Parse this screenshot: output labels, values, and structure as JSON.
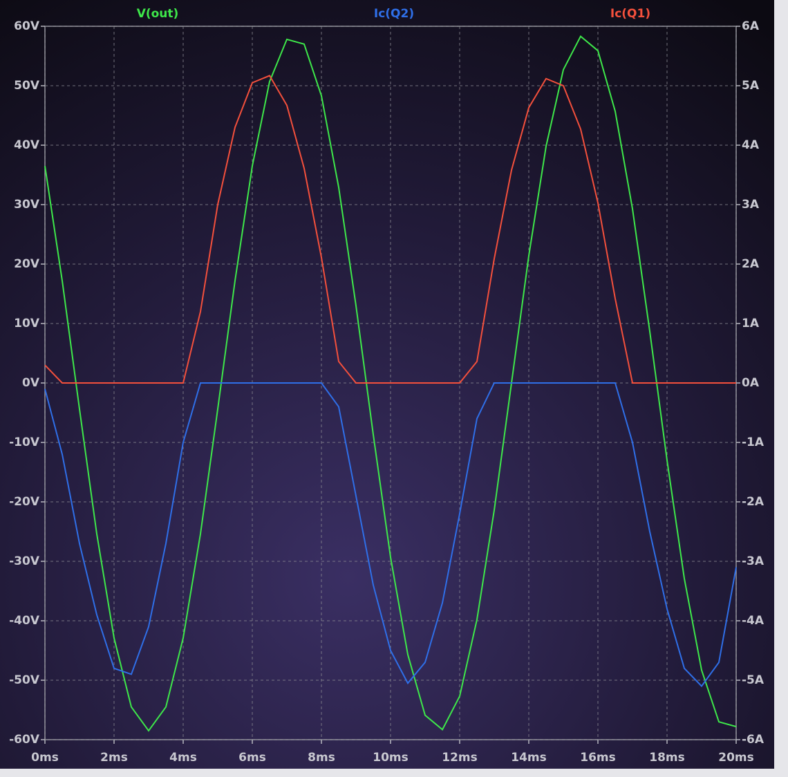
{
  "chart_data": {
    "type": "line",
    "x": [
      0,
      0.5,
      1,
      1.5,
      2,
      2.5,
      3,
      3.5,
      4,
      4.5,
      5,
      5.5,
      6,
      6.5,
      7,
      7.5,
      8,
      8.5,
      9,
      9.5,
      10,
      10.5,
      11,
      11.5,
      12,
      12.5,
      13,
      13.5,
      14,
      14.5,
      15,
      15.5,
      16,
      16.5,
      17,
      17.5,
      18,
      18.5,
      19,
      19.5,
      20
    ],
    "series": [
      {
        "name": "V(out)",
        "color": "#3ee84a",
        "axis": "y",
        "values": [
          36.5,
          17.2,
          -4.4,
          -25.4,
          -42.9,
          -54.5,
          -58.5,
          -54.5,
          -42.9,
          -25.4,
          -4.4,
          17.2,
          36.5,
          50.7,
          57.8,
          57.0,
          48.3,
          32.9,
          13.0,
          -8.7,
          -29.3,
          -45.7,
          -55.9,
          -58.3,
          -52.7,
          -39.8,
          -21.4,
          0,
          21.4,
          39.8,
          52.7,
          58.3,
          55.9,
          45.7,
          29.3,
          8.7,
          -13.0,
          -32.9,
          -48.3,
          -57.0,
          -57.8
        ]
      },
      {
        "name": "Ic(Q2)",
        "color": "#2f6fe8",
        "axis": "y2",
        "values": [
          -0.1,
          -1.2,
          -2.7,
          -3.9,
          -4.8,
          -4.9,
          -4.1,
          -2.7,
          -1.0,
          0,
          0,
          0,
          0,
          0,
          0,
          0,
          0,
          -0.4,
          -1.9,
          -3.4,
          -4.5,
          -5.05,
          -4.7,
          -3.7,
          -2.2,
          -0.6,
          0,
          0,
          0,
          0,
          0,
          0,
          0,
          0,
          -1.0,
          -2.5,
          -3.8,
          -4.8,
          -5.1,
          -4.7,
          -3.1
        ]
      },
      {
        "name": "Ic(Q1)",
        "color": "#f4503c",
        "axis": "y2",
        "values": [
          0.3,
          0,
          0,
          0,
          0,
          0,
          0,
          0,
          0,
          1.2,
          3.0,
          4.3,
          5.05,
          5.17,
          4.67,
          3.61,
          2.11,
          0.36,
          0,
          0,
          0,
          0,
          0,
          0,
          0,
          0.36,
          2.09,
          3.58,
          4.63,
          5.12,
          5.0,
          4.27,
          3.03,
          1.42,
          0,
          0,
          0,
          0,
          0,
          0,
          0
        ]
      }
    ],
    "xlim": [
      0,
      20
    ],
    "xticks": [
      {
        "value": 0,
        "label": "0ms"
      },
      {
        "value": 2,
        "label": "2ms"
      },
      {
        "value": 4,
        "label": "4ms"
      },
      {
        "value": 6,
        "label": "6ms"
      },
      {
        "value": 8,
        "label": "8ms"
      },
      {
        "value": 10,
        "label": "10ms"
      },
      {
        "value": 12,
        "label": "12ms"
      },
      {
        "value": 14,
        "label": "14ms"
      },
      {
        "value": 16,
        "label": "16ms"
      },
      {
        "value": 18,
        "label": "18ms"
      },
      {
        "value": 20,
        "label": "20ms"
      }
    ],
    "ylim": [
      -60,
      60
    ],
    "yticks": [
      {
        "value": -60,
        "label": "-60V"
      },
      {
        "value": -50,
        "label": "-50V"
      },
      {
        "value": -40,
        "label": "-40V"
      },
      {
        "value": -30,
        "label": "-30V"
      },
      {
        "value": -20,
        "label": "-20V"
      },
      {
        "value": -10,
        "label": "-10V"
      },
      {
        "value": 0,
        "label": "0V"
      },
      {
        "value": 10,
        "label": "10V"
      },
      {
        "value": 20,
        "label": "20V"
      },
      {
        "value": 30,
        "label": "30V"
      },
      {
        "value": 40,
        "label": "40V"
      },
      {
        "value": 50,
        "label": "50V"
      },
      {
        "value": 60,
        "label": "60V"
      }
    ],
    "y2lim": [
      -6,
      6
    ],
    "y2ticks": [
      {
        "value": -6,
        "label": "-6A"
      },
      {
        "value": -5,
        "label": "-5A"
      },
      {
        "value": -4,
        "label": "-4A"
      },
      {
        "value": -3,
        "label": "-3A"
      },
      {
        "value": -2,
        "label": "-2A"
      },
      {
        "value": -1,
        "label": "-1A"
      },
      {
        "value": 0,
        "label": "0A"
      },
      {
        "value": 1,
        "label": "1A"
      },
      {
        "value": 2,
        "label": "2A"
      },
      {
        "value": 3,
        "label": "3A"
      },
      {
        "value": 4,
        "label": "4A"
      },
      {
        "value": 5,
        "label": "5A"
      },
      {
        "value": 6,
        "label": "6A"
      }
    ],
    "grid": true
  }
}
